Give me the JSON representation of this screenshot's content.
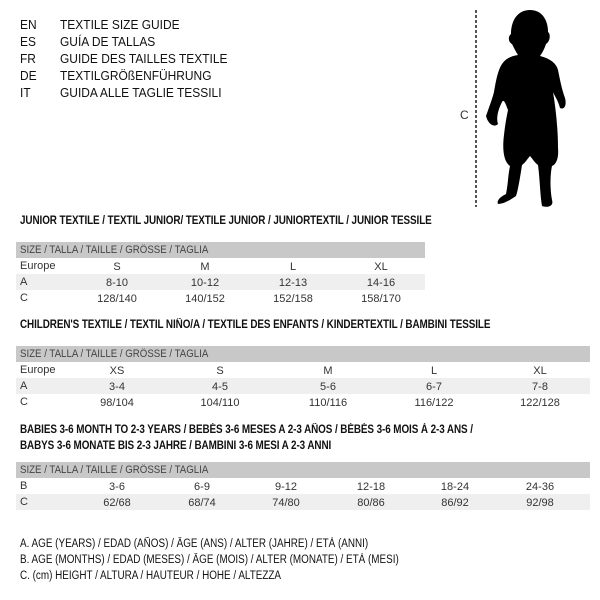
{
  "languages": [
    {
      "code": "EN",
      "label": "TEXTILE SIZE GUIDE"
    },
    {
      "code": "ES",
      "label": "GUÍA DE TALLAS"
    },
    {
      "code": "FR",
      "label": "GUIDE DES TAILLES TEXTILE"
    },
    {
      "code": "DE",
      "label": "TEXTILGRÖßENFÜHRUNG"
    },
    {
      "code": "IT",
      "label": "GUIDA ALLE TAGLIE TESSILI"
    }
  ],
  "figure": {
    "measure_label": "C",
    "icon": "child-silhouette"
  },
  "tables": [
    {
      "title": "JUNIOR TEXTILE / TEXTIL JUNIOR/ TEXTILE JUNIOR / JUNIORTEXTIL / JUNIOR TESSILE",
      "header": "SIZE / TALLA / TAILLE / GRÖSSE / TAGLIA",
      "rows": [
        {
          "label": "Europe",
          "values": [
            "S",
            "M",
            "L",
            "XL"
          ]
        },
        {
          "label": "A",
          "values": [
            "8-10",
            "10-12",
            "12-13",
            "14-16"
          ]
        },
        {
          "label": "C",
          "values": [
            "128/140",
            "140/152",
            "152/158",
            "158/170"
          ]
        }
      ]
    },
    {
      "title": "CHILDREN'S TEXTILE / TEXTIL NIÑO/A / TEXTILE DES ENFANTS / KINDERTEXTIL / BAMBINI TESSILE",
      "header": "SIZE / TALLA / TAILLE / GRÖSSE / TAGLIA",
      "rows": [
        {
          "label": "Europe",
          "values": [
            "XS",
            "S",
            "M",
            "L",
            "XL"
          ]
        },
        {
          "label": "A",
          "values": [
            "3-4",
            "4-5",
            "5-6",
            "6-7",
            "7-8"
          ]
        },
        {
          "label": "C",
          "values": [
            "98/104",
            "104/110",
            "110/116",
            "116/122",
            "122/128"
          ]
        }
      ]
    },
    {
      "title": "BABIES 3-6 MONTH TO 2-3 YEARS / BEBÉS 3-6 MESES A 2-3 AÑOS / BÉBÉS 3-6 MOIS À 2-3 ANS /",
      "title2": "BABYS 3-6 MONATE BIS 2-3 JAHRE / BAMBINI 3-6 MESI A 2-3 ANNI",
      "header": "SIZE / TALLA / TAILLE / GRÖSSE / TAGLIA",
      "rows": [
        {
          "label": "B",
          "values": [
            "3-6",
            "6-9",
            "9-12",
            "12-18",
            "18-24",
            "24-36"
          ]
        },
        {
          "label": "C",
          "values": [
            "62/68",
            "68/74",
            "74/80",
            "80/86",
            "86/92",
            "92/98"
          ]
        }
      ]
    }
  ],
  "legend": [
    "A. AGE (YEARS) / EDAD (AÑOS) / ÂGE (ANS) / ALTER (JAHRE) / ETÀ (ANNI)",
    "B. AGE (MONTHS) / EDAD (MESES) / ÂGE (MOIS) / ALTER (MONATE) / ETÀ (MESI)",
    "C. (cm) HEIGHT / ALTURA / HAUTEUR / HÖHE / ALTEZZA"
  ]
}
